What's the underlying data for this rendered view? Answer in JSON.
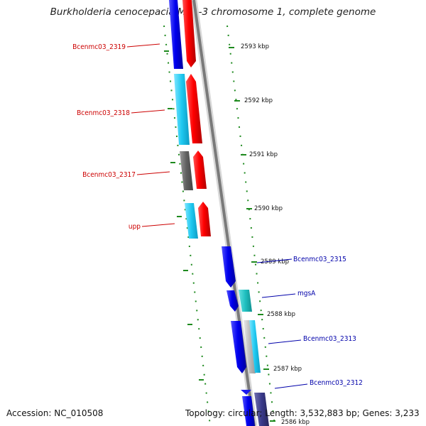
{
  "title": "Burkholderia cenocepacia MC0-3 chromosome 1, complete genome",
  "footer": {
    "accession": "Accession: NC_010508",
    "summary": "Topology: circular; Length: 3,532,883 bp; Genes: 3,233"
  },
  "ticks": [
    "2593 kbp",
    "2592 kbp",
    "2591 kbp",
    "2590 kbp",
    "2589 kbp",
    "2588 kbp",
    "2587 kbp",
    "2586 kbp"
  ],
  "genes_left": [
    "Bcenmc03_2319",
    "Bcenmc03_2318",
    "Bcenmc03_2317",
    "upp"
  ],
  "genes_right": [
    "Bcenmc03_2315",
    "mgsA",
    "Bcenmc03_2313",
    "Bcenmc03_2312"
  ],
  "colors": {
    "forward_strand": "#ff1a1a",
    "reverse_strand": "#1a1aee",
    "cds": "#22c8ee",
    "other": "#666666",
    "teal": "#26c6c6",
    "left_labels": "#cc0000",
    "right_labels": "#0000aa",
    "ticks": "#228822",
    "backbone": "#888888"
  }
}
